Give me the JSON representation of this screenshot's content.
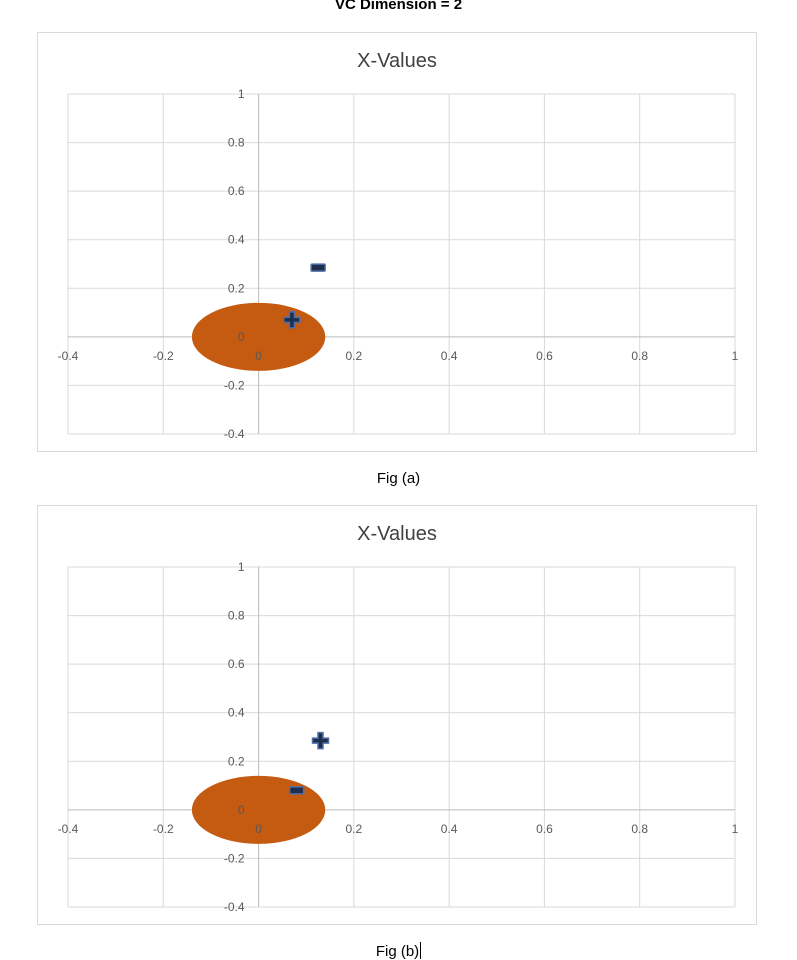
{
  "page": {
    "title": "VC Dimension = 2"
  },
  "chart_data": [
    {
      "type": "scatter",
      "title": "X-Values",
      "caption": "Fig (a)",
      "xlim": [
        -0.4,
        1
      ],
      "ylim": [
        -0.4,
        1
      ],
      "x_ticks": [
        "-0.4",
        "-0.2",
        "0",
        "0.2",
        "0.4",
        "0.6",
        "0.8",
        "1"
      ],
      "y_ticks": [
        "1",
        "0.8",
        "0.6",
        "0.4",
        "0.2",
        "0",
        "-0.2",
        "-0.4"
      ],
      "grid": true,
      "legend": "none",
      "circle": {
        "cx": 0,
        "cy": 0,
        "r": 0.14,
        "color": "#c55a11"
      },
      "points": [
        {
          "x": 0.125,
          "y": 0.285,
          "marker": "minus"
        },
        {
          "x": 0.07,
          "y": 0.07,
          "marker": "plus"
        }
      ]
    },
    {
      "type": "scatter",
      "title": "X-Values",
      "caption": "Fig (b)",
      "xlim": [
        -0.4,
        1
      ],
      "ylim": [
        -0.4,
        1
      ],
      "x_ticks": [
        "-0.4",
        "-0.2",
        "0",
        "0.2",
        "0.4",
        "0.6",
        "0.8",
        "1"
      ],
      "y_ticks": [
        "1",
        "0.8",
        "0.6",
        "0.4",
        "0.2",
        "0",
        "-0.2",
        "-0.4"
      ],
      "grid": true,
      "legend": "none",
      "circle": {
        "cx": 0,
        "cy": 0,
        "r": 0.14,
        "color": "#c55a11"
      },
      "points": [
        {
          "x": 0.13,
          "y": 0.285,
          "marker": "plus"
        },
        {
          "x": 0.08,
          "y": 0.08,
          "marker": "minus"
        }
      ]
    }
  ],
  "colors": {
    "marker_fill": "#1f2d4f",
    "marker_outline": "#4f6fa8",
    "gridline": "#d9d9d9",
    "axis": "#bfbfbf",
    "frame_border": "#d9d9d9"
  }
}
